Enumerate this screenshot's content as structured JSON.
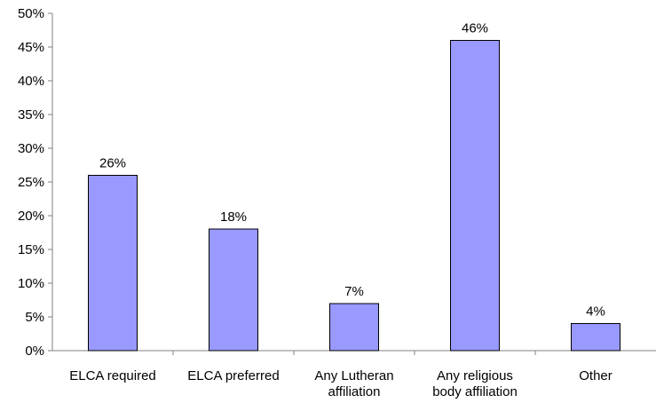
{
  "chart_data": {
    "type": "bar",
    "title": "",
    "xlabel": "",
    "ylabel": "",
    "categories": [
      [
        "ELCA required"
      ],
      [
        "ELCA preferred"
      ],
      [
        "Any Lutheran",
        "affiliation"
      ],
      [
        "Any religious",
        "body affiliation"
      ],
      [
        "Other"
      ]
    ],
    "values": [
      26,
      18,
      7,
      46,
      4
    ],
    "data_labels": [
      "26%",
      "18%",
      "7%",
      "46%",
      "4%"
    ],
    "y_ticks": [
      "0%",
      "5%",
      "10%",
      "15%",
      "20%",
      "25%",
      "30%",
      "35%",
      "40%",
      "45%",
      "50%"
    ],
    "ylim": [
      0,
      50
    ],
    "grid": false,
    "legend": "none",
    "colors": {
      "bar_fill": "#9999ff",
      "bar_stroke": "#000000",
      "axis": "#808080"
    }
  }
}
